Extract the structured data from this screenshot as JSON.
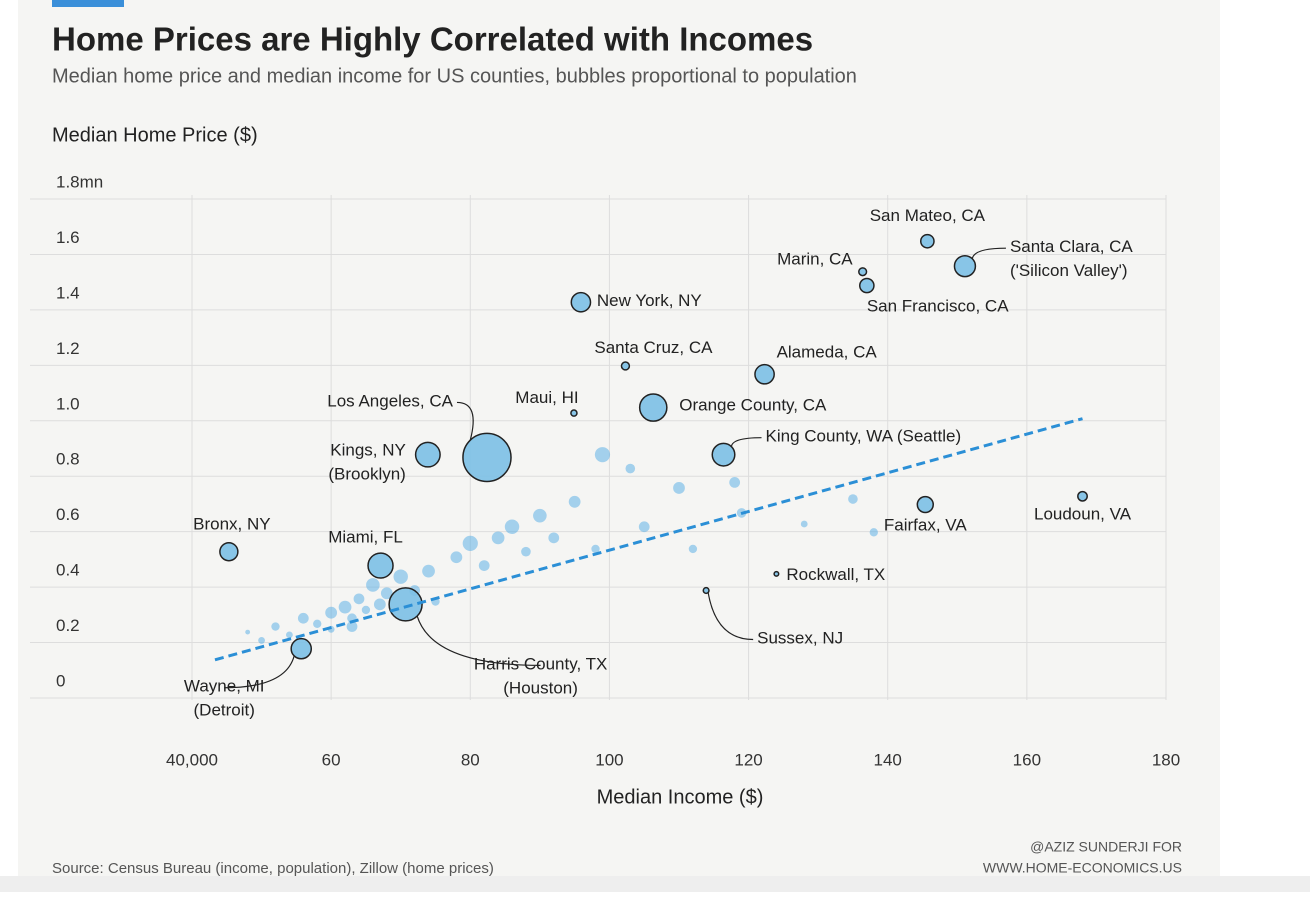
{
  "chart_data": {
    "type": "bubble",
    "title": "Home Prices are Highly Correlated with Incomes",
    "subtitle": "Median home price and median income for US counties, bubbles proportional to population",
    "y_label": "Median Home Price ($)",
    "x_label": "Median Income ($)",
    "source": "Source: Census Bureau (income, population), Zillow (home prices)",
    "credit": [
      "@AZIZ SUNDERJI FOR",
      "WWW.HOME-ECONOMICS.US"
    ],
    "xlim": [
      40000,
      180000
    ],
    "ylim": [
      0,
      1800000
    ],
    "xticks": [
      {
        "value": 40000,
        "label": "40,000"
      },
      {
        "value": 60000,
        "label": "60"
      },
      {
        "value": 80000,
        "label": "80"
      },
      {
        "value": 100000,
        "label": "100"
      },
      {
        "value": 120000,
        "label": "120"
      },
      {
        "value": 140000,
        "label": "140"
      },
      {
        "value": 160000,
        "label": "160"
      },
      {
        "value": 180000,
        "label": "180"
      }
    ],
    "yticks": [
      0,
      {
        "value": 200000,
        "label": "0.2"
      },
      {
        "value": 400000,
        "label": "0.4"
      },
      {
        "value": 600000,
        "label": "0.6"
      },
      {
        "value": 800000,
        "label": "0.8"
      },
      {
        "value": 1000000,
        "label": "1.0"
      },
      {
        "value": 1200000,
        "label": "1.2"
      },
      {
        "value": 1400000,
        "label": "1.4"
      },
      {
        "value": 1600000,
        "label": "1.6"
      },
      {
        "value": 1800000,
        "label": "1.8mn"
      }
    ],
    "grid": true,
    "series": [
      {
        "color": "#5fb0e6",
        "x": [
          48000,
          50000,
          52000,
          54000,
          56000,
          58000,
          60000,
          60000,
          62000,
          63000,
          64000,
          65000,
          66000,
          68000,
          70000,
          72000,
          74000,
          75000,
          78000,
          80000,
          82000,
          84000,
          86000,
          88000,
          90000,
          92000,
          95000,
          98000,
          99000,
          103000,
          105000,
          110000,
          112000,
          118000,
          119000,
          128000,
          135000,
          138000,
          63000,
          67000
        ],
        "values": [
          180000,
          150000,
          200000,
          170000,
          230000,
          210000,
          250000,
          190000,
          270000,
          230000,
          300000,
          260000,
          350000,
          320000,
          380000,
          330000,
          400000,
          290000,
          450000,
          500000,
          420000,
          520000,
          560000,
          470000,
          600000,
          520000,
          650000,
          480000,
          820000,
          770000,
          560000,
          700000,
          480000,
          720000,
          610000,
          570000,
          660000,
          540000,
          200000,
          280000
        ],
        "sizes": [
          0.1,
          0.2,
          0.3,
          0.2,
          0.5,
          0.3,
          0.6,
          0.2,
          0.7,
          0.4,
          0.5,
          0.3,
          0.8,
          0.6,
          0.9,
          0.5,
          0.7,
          0.3,
          0.6,
          1.0,
          0.5,
          0.7,
          0.9,
          0.4,
          0.8,
          0.5,
          0.6,
          0.3,
          1.0,
          0.4,
          0.5,
          0.6,
          0.3,
          0.5,
          0.4,
          0.2,
          0.4,
          0.3,
          0.5,
          0.6
        ]
      },
      {
        "color": "#7cc0e6",
        "stroke": "#222222",
        "labels": [
          [
            "San Mateo, CA"
          ],
          [
            "Santa Clara, CA",
            "('Silicon Valley')"
          ],
          [
            "Marin, CA"
          ],
          [
            "San Francisco, CA"
          ],
          [
            "New York, NY"
          ],
          [
            "Santa Cruz, CA"
          ],
          [
            "Alameda, CA"
          ],
          [
            "Maui, HI"
          ],
          [
            "Orange County, CA"
          ],
          [
            "Los Angeles, CA"
          ],
          [
            "Kings, NY",
            "(Brooklyn)"
          ],
          [
            "King County, WA (Seattle)"
          ],
          [
            "Fairfax, VA"
          ],
          [
            "Loudoun, VA"
          ],
          [
            "Bronx, NY"
          ],
          [
            "Miami, FL"
          ],
          [
            "Rockwall, TX"
          ],
          [
            "Harris County, TX",
            "(Houston)"
          ],
          [
            "Sussex, NJ"
          ],
          [
            "Wayne, MI",
            "(Detroit)"
          ]
        ],
        "x": [
          145700,
          151100,
          136400,
          137000,
          95900,
          102300,
          122300,
          94900,
          106300,
          82400,
          73900,
          116400,
          145400,
          168000,
          45300,
          67100,
          124000,
          70700,
          113900,
          55700
        ],
        "values": [
          1590000,
          1500000,
          1480000,
          1430000,
          1370000,
          1140000,
          1110000,
          970000,
          990000,
          810000,
          820000,
          820000,
          640000,
          670000,
          470000,
          420000,
          390000,
          280000,
          330000,
          120000
        ],
        "sizes": [
          0.76,
          1.9,
          0.26,
          0.87,
          1.6,
          0.27,
          1.6,
          0.16,
          3.2,
          10,
          2.6,
          2.2,
          1.1,
          0.38,
          1.4,
          2.7,
          0.09,
          4.7,
          0.14,
          1.75
        ]
      }
    ],
    "trend": {
      "color": "#2b8fd6",
      "x": [
        43300,
        168000
      ],
      "values": [
        80000,
        950000
      ]
    }
  }
}
